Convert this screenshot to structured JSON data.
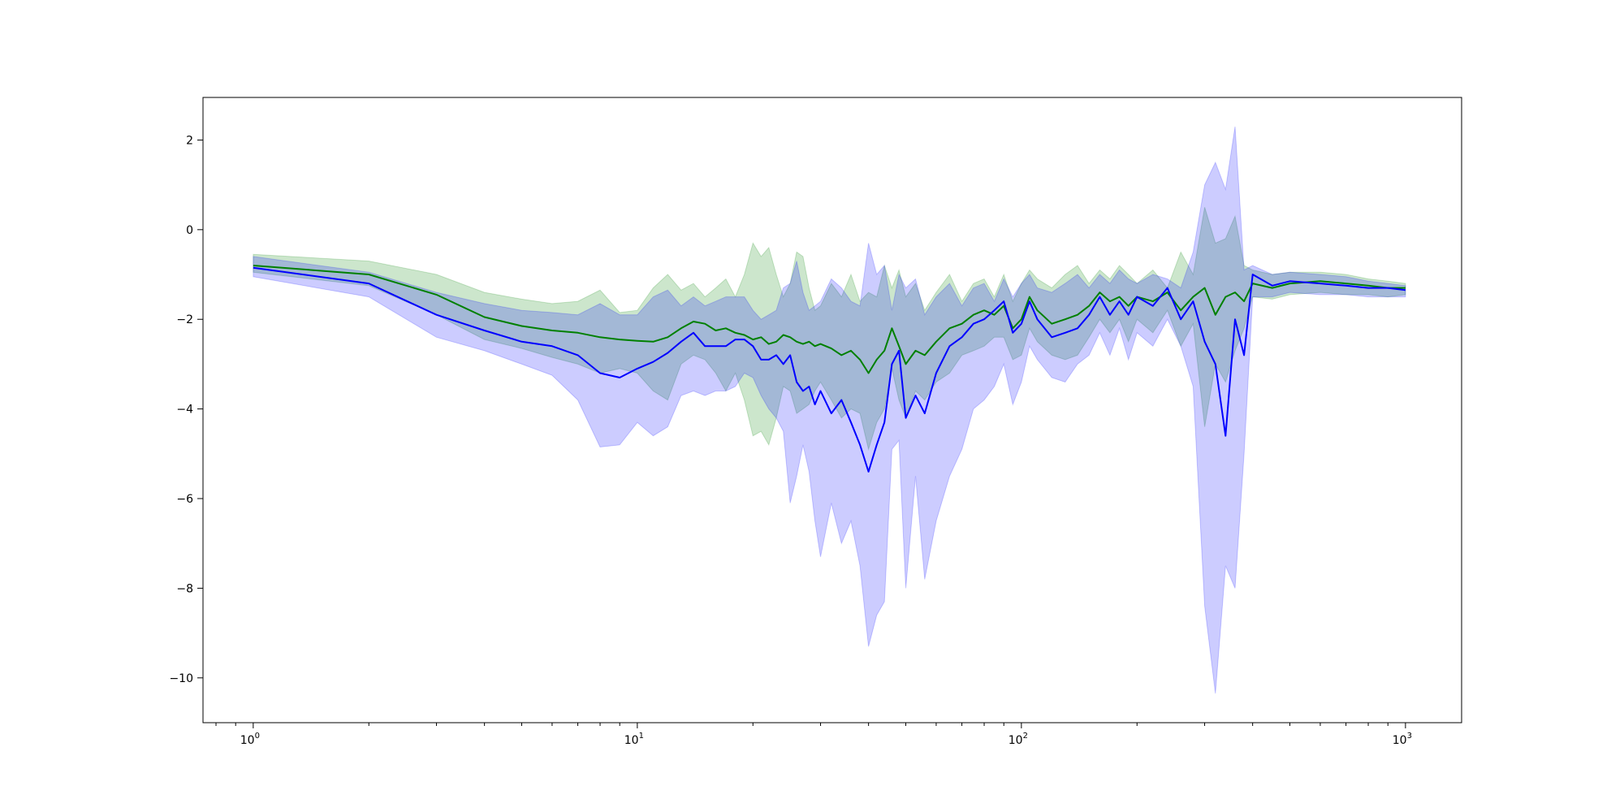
{
  "chart_data": {
    "type": "line",
    "title": "",
    "xlabel": "",
    "ylabel": "",
    "xscale": "log",
    "xlim": [
      0.74,
      1400
    ],
    "ylim": [
      -11,
      2.95
    ],
    "grid": false,
    "legend": "none",
    "x_ticks": [
      {
        "value": 1,
        "base": "10",
        "exp": "0"
      },
      {
        "value": 10,
        "base": "10",
        "exp": "1"
      },
      {
        "value": 100,
        "base": "10",
        "exp": "2"
      },
      {
        "value": 1000,
        "base": "10",
        "exp": "3"
      }
    ],
    "y_ticks": [
      {
        "value": 2,
        "label": "2"
      },
      {
        "value": 0,
        "label": "0"
      },
      {
        "value": -2,
        "label": "−2"
      },
      {
        "value": -4,
        "label": "−4"
      },
      {
        "value": -6,
        "label": "−6"
      },
      {
        "value": -8,
        "label": "−8"
      },
      {
        "value": -10,
        "label": "−10"
      }
    ],
    "series": [
      {
        "color": "#008000",
        "band_color": "#008000",
        "band_opacity": 0.2,
        "x": [
          1,
          2,
          3,
          4,
          5,
          6,
          7,
          8,
          9,
          10,
          11,
          12,
          13,
          14,
          15,
          16,
          17,
          18,
          19,
          20,
          21,
          22,
          23,
          24,
          25,
          26,
          27,
          28,
          29,
          30,
          32,
          34,
          36,
          38,
          40,
          42,
          44,
          46,
          48,
          50,
          53,
          56,
          60,
          65,
          70,
          75,
          80,
          85,
          90,
          95,
          100,
          105,
          110,
          120,
          130,
          140,
          150,
          160,
          170,
          180,
          190,
          200,
          220,
          240,
          260,
          280,
          300,
          320,
          340,
          360,
          380,
          400,
          450,
          500,
          600,
          700,
          800,
          900,
          1000
        ],
        "y": [
          -0.8,
          -1.0,
          -1.45,
          -1.95,
          -2.15,
          -2.25,
          -2.3,
          -2.4,
          -2.45,
          -2.48,
          -2.5,
          -2.4,
          -2.2,
          -2.05,
          -2.1,
          -2.25,
          -2.2,
          -2.3,
          -2.35,
          -2.45,
          -2.4,
          -2.55,
          -2.5,
          -2.35,
          -2.4,
          -2.5,
          -2.55,
          -2.5,
          -2.6,
          -2.55,
          -2.65,
          -2.8,
          -2.7,
          -2.9,
          -3.2,
          -2.9,
          -2.7,
          -2.2,
          -2.6,
          -3.0,
          -2.7,
          -2.8,
          -2.5,
          -2.2,
          -2.1,
          -1.9,
          -1.8,
          -1.9,
          -1.7,
          -2.2,
          -2.0,
          -1.5,
          -1.8,
          -2.1,
          -2.0,
          -1.9,
          -1.7,
          -1.4,
          -1.6,
          -1.5,
          -1.7,
          -1.5,
          -1.6,
          -1.4,
          -1.8,
          -1.5,
          -1.3,
          -1.9,
          -1.5,
          -1.4,
          -1.6,
          -1.2,
          -1.3,
          -1.2,
          -1.15,
          -1.2,
          -1.25,
          -1.3,
          -1.3
        ],
        "upper": [
          -0.55,
          -0.7,
          -1.0,
          -1.4,
          -1.55,
          -1.65,
          -1.6,
          -1.35,
          -1.85,
          -1.8,
          -1.3,
          -1.0,
          -1.35,
          -1.2,
          -1.5,
          -1.3,
          -1.1,
          -1.5,
          -1.0,
          -0.3,
          -0.6,
          -0.4,
          -1.0,
          -1.5,
          -1.2,
          -0.5,
          -0.6,
          -1.3,
          -1.8,
          -1.7,
          -1.2,
          -1.5,
          -1.0,
          -1.6,
          -1.4,
          -1.5,
          -0.8,
          -1.3,
          -0.9,
          -1.5,
          -1.2,
          -1.8,
          -1.4,
          -1.0,
          -1.6,
          -1.2,
          -1.1,
          -1.5,
          -1.0,
          -1.6,
          -1.2,
          -0.9,
          -1.1,
          -1.3,
          -1.0,
          -0.8,
          -1.2,
          -0.9,
          -1.1,
          -0.8,
          -1.0,
          -1.2,
          -0.9,
          -1.3,
          -0.5,
          -1.0,
          0.5,
          -0.3,
          -0.2,
          0.3,
          -0.8,
          -0.9,
          -1.0,
          -0.95,
          -0.95,
          -1.0,
          -1.1,
          -1.15,
          -1.2
        ],
        "lower": [
          -0.95,
          -1.25,
          -1.9,
          -2.45,
          -2.65,
          -2.85,
          -3.0,
          -3.2,
          -3.1,
          -3.2,
          -3.6,
          -3.8,
          -3.0,
          -2.8,
          -2.9,
          -3.2,
          -3.6,
          -3.2,
          -3.8,
          -4.6,
          -4.5,
          -4.8,
          -4.2,
          -3.5,
          -3.6,
          -4.1,
          -4.0,
          -3.9,
          -3.6,
          -3.4,
          -3.8,
          -4.2,
          -4.0,
          -4.1,
          -4.9,
          -4.3,
          -4.0,
          -3.1,
          -3.8,
          -4.2,
          -3.6,
          -3.8,
          -3.4,
          -3.2,
          -2.8,
          -2.7,
          -2.6,
          -2.4,
          -2.4,
          -2.9,
          -2.8,
          -2.2,
          -2.5,
          -2.8,
          -2.9,
          -2.8,
          -2.4,
          -2.0,
          -2.3,
          -2.0,
          -2.5,
          -2.0,
          -2.3,
          -1.8,
          -2.6,
          -2.1,
          -4.4,
          -3.0,
          -3.4,
          -2.7,
          -2.2,
          -1.5,
          -1.55,
          -1.45,
          -1.4,
          -1.45,
          -1.45,
          -1.5,
          -1.45
        ]
      },
      {
        "color": "#0000ff",
        "band_color": "#0000ff",
        "band_opacity": 0.2,
        "x": [
          1,
          2,
          3,
          4,
          5,
          6,
          7,
          8,
          9,
          10,
          11,
          12,
          13,
          14,
          15,
          16,
          17,
          18,
          19,
          20,
          21,
          22,
          23,
          24,
          25,
          26,
          27,
          28,
          29,
          30,
          32,
          34,
          36,
          38,
          40,
          42,
          44,
          46,
          48,
          50,
          53,
          56,
          60,
          65,
          70,
          75,
          80,
          85,
          90,
          95,
          100,
          105,
          110,
          120,
          130,
          140,
          150,
          160,
          170,
          180,
          190,
          200,
          220,
          240,
          260,
          280,
          300,
          320,
          340,
          360,
          380,
          400,
          450,
          500,
          600,
          700,
          800,
          900,
          1000
        ],
        "y": [
          -0.85,
          -1.2,
          -1.9,
          -2.25,
          -2.5,
          -2.6,
          -2.8,
          -3.2,
          -3.3,
          -3.1,
          -2.95,
          -2.75,
          -2.5,
          -2.3,
          -2.6,
          -2.6,
          -2.6,
          -2.45,
          -2.45,
          -2.6,
          -2.9,
          -2.9,
          -2.8,
          -3.0,
          -2.8,
          -3.4,
          -3.6,
          -3.5,
          -3.9,
          -3.6,
          -4.1,
          -3.8,
          -4.3,
          -4.8,
          -5.4,
          -4.8,
          -4.3,
          -3.0,
          -2.7,
          -4.2,
          -3.7,
          -4.1,
          -3.2,
          -2.6,
          -2.4,
          -2.1,
          -2.0,
          -1.8,
          -1.6,
          -2.3,
          -2.1,
          -1.6,
          -2.0,
          -2.4,
          -2.3,
          -2.2,
          -1.9,
          -1.5,
          -1.9,
          -1.6,
          -1.9,
          -1.5,
          -1.7,
          -1.3,
          -2.0,
          -1.6,
          -2.5,
          -3.0,
          -4.6,
          -2.0,
          -2.8,
          -1.0,
          -1.25,
          -1.15,
          -1.2,
          -1.25,
          -1.3,
          -1.3,
          -1.35
        ],
        "upper": [
          -0.6,
          -0.95,
          -1.4,
          -1.65,
          -1.8,
          -1.85,
          -1.9,
          -1.65,
          -1.9,
          -1.9,
          -1.5,
          -1.35,
          -1.7,
          -1.5,
          -1.7,
          -1.6,
          -1.5,
          -1.5,
          -1.5,
          -1.8,
          -2.0,
          -1.9,
          -1.8,
          -1.3,
          -1.2,
          -0.7,
          -1.4,
          -1.8,
          -1.7,
          -1.6,
          -1.1,
          -1.3,
          -1.6,
          -1.7,
          -0.3,
          -1.0,
          -0.8,
          -1.8,
          -1.0,
          -1.3,
          -1.1,
          -1.9,
          -1.5,
          -1.2,
          -1.7,
          -1.3,
          -1.2,
          -1.6,
          -1.1,
          -1.5,
          -1.2,
          -1.0,
          -1.3,
          -1.4,
          -1.2,
          -1.0,
          -1.3,
          -1.0,
          -1.2,
          -0.9,
          -1.1,
          -1.2,
          -1.0,
          -1.1,
          -1.3,
          -0.5,
          1.0,
          1.5,
          0.9,
          2.3,
          -0.9,
          -0.8,
          -1.0,
          -0.95,
          -1.0,
          -1.05,
          -1.15,
          -1.2,
          -1.25
        ],
        "lower": [
          -1.05,
          -1.5,
          -2.4,
          -2.7,
          -3.0,
          -3.25,
          -3.8,
          -4.85,
          -4.8,
          -4.3,
          -4.6,
          -4.4,
          -3.7,
          -3.6,
          -3.7,
          -3.6,
          -3.6,
          -3.5,
          -3.2,
          -3.3,
          -3.7,
          -4.0,
          -4.2,
          -4.5,
          -6.1,
          -5.5,
          -4.8,
          -5.4,
          -6.5,
          -7.3,
          -6.1,
          -7.0,
          -6.5,
          -7.5,
          -9.3,
          -8.6,
          -8.3,
          -4.9,
          -4.7,
          -8.0,
          -5.5,
          -7.8,
          -6.5,
          -5.5,
          -4.9,
          -4.0,
          -3.8,
          -3.5,
          -3.0,
          -3.9,
          -3.4,
          -2.6,
          -2.9,
          -3.3,
          -3.4,
          -3.0,
          -2.8,
          -2.3,
          -2.8,
          -2.2,
          -2.9,
          -2.3,
          -2.6,
          -2.0,
          -2.6,
          -3.5,
          -8.4,
          -10.35,
          -7.5,
          -8.0,
          -5.0,
          -1.5,
          -1.5,
          -1.4,
          -1.45,
          -1.45,
          -1.5,
          -1.5,
          -1.5
        ]
      }
    ]
  }
}
